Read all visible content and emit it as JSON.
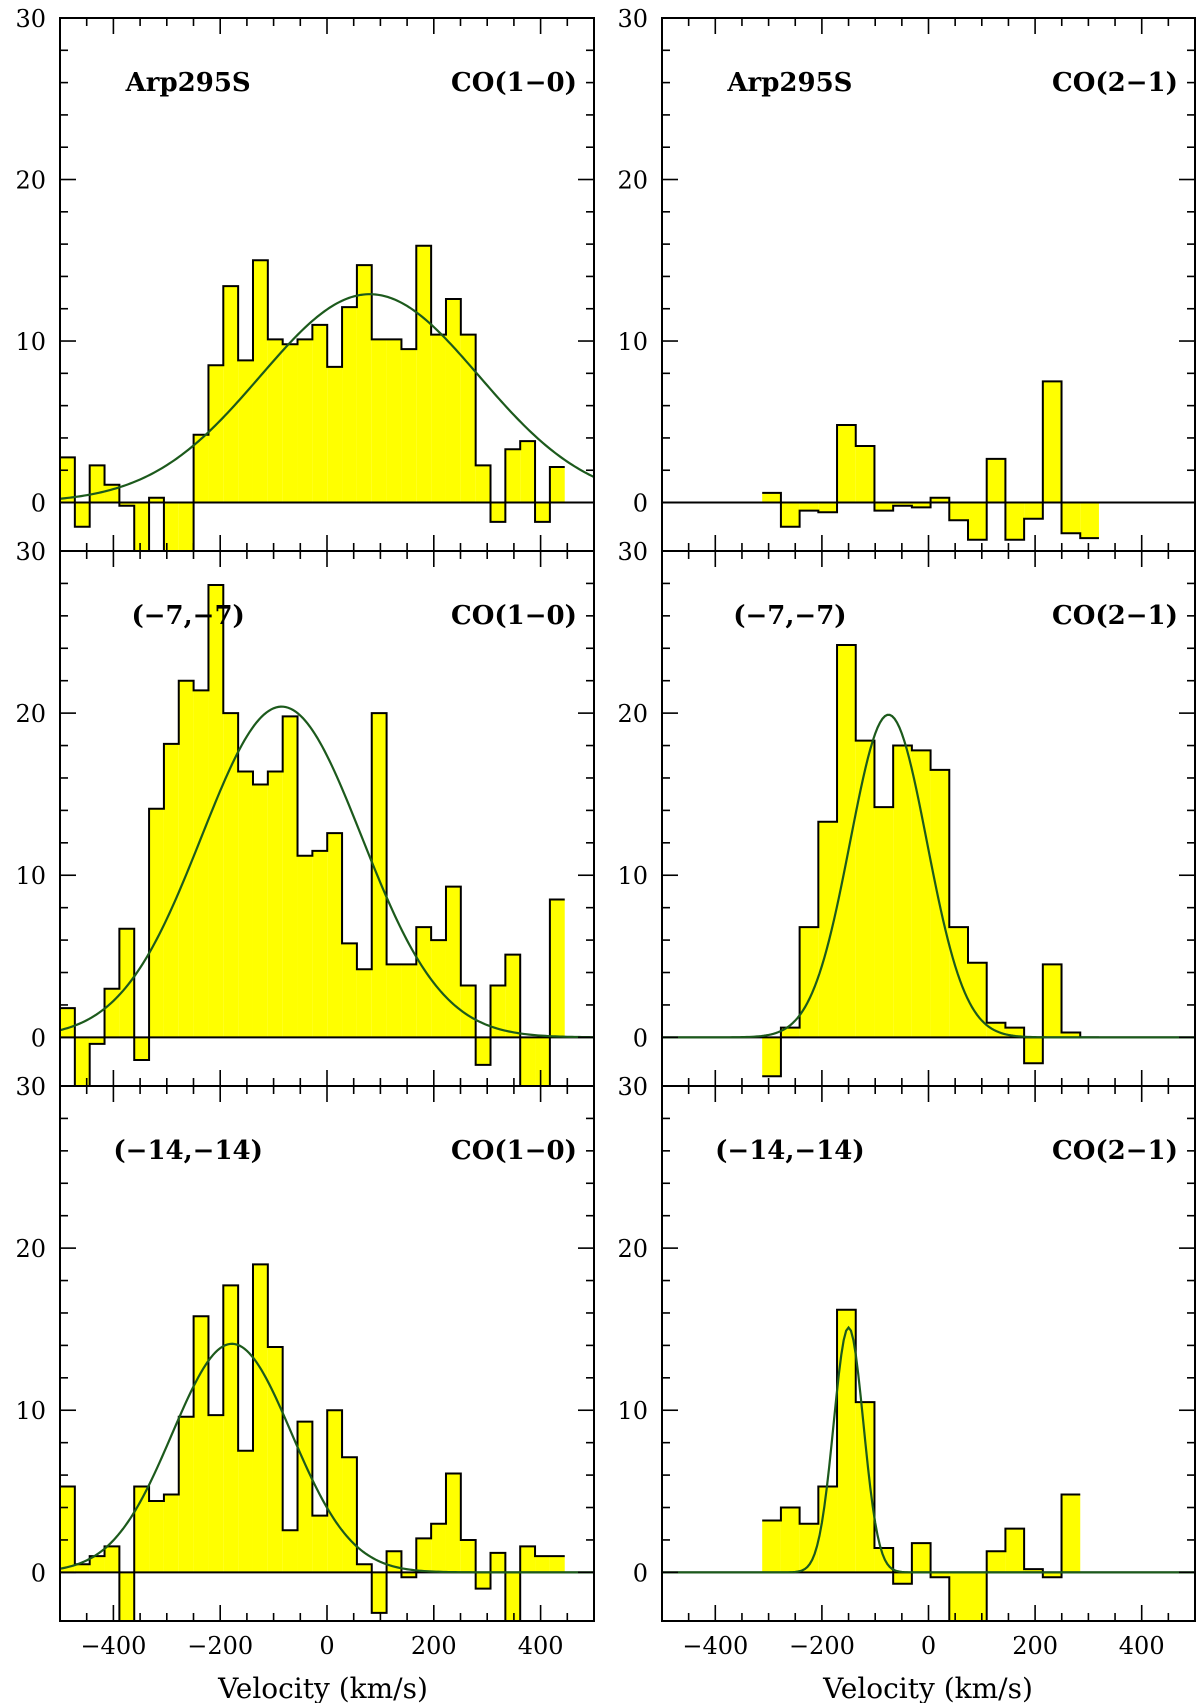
{
  "chart_data": {
    "type": "bar",
    "colors": {
      "fill": "#ffff00",
      "stroke": "#000000",
      "fit": "#1c5a1c"
    },
    "xlabel": "Velocity (km/s)",
    "x_tick_labels": [
      "−400",
      "−200",
      "0",
      "200",
      "400"
    ],
    "xlim": [
      -500,
      500
    ],
    "ylim": [
      -3,
      30
    ],
    "y_tick_labels": [
      "0",
      "10",
      "20",
      "30"
    ],
    "panels": [
      {
        "row": 0,
        "col": 0,
        "source": "Arp295S",
        "line": "CO(1−0)",
        "bin_start": -500,
        "bin_width": 27.8,
        "values": [
          2.8,
          -1.5,
          2.3,
          1.1,
          -0.2,
          -3.0,
          0.3,
          -3.0,
          -3.0,
          4.2,
          8.5,
          13.4,
          8.8,
          15.0,
          10.1,
          9.8,
          10.1,
          11.0,
          8.4,
          12.1,
          14.7,
          10.1,
          10.1,
          9.5,
          15.9,
          10.4,
          12.6,
          10.4,
          2.3,
          -1.2,
          3.3,
          3.8,
          -1.2,
          2.2
        ],
        "fit": {
          "amp": 12.9,
          "center": 80,
          "sigma": 205
        }
      },
      {
        "row": 0,
        "col": 1,
        "source": "Arp295S",
        "line": "CO(2−1)",
        "bin_start": -312,
        "bin_width": 35.1,
        "values": [
          0.6,
          -1.5,
          -0.5,
          -0.6,
          4.8,
          3.5,
          -0.5,
          -0.2,
          -0.3,
          0.3,
          -1.1,
          -2.3,
          2.7,
          -2.3,
          -1.0,
          7.5,
          -1.9,
          -2.2
        ],
        "fit": null
      },
      {
        "row": 1,
        "col": 0,
        "source": "(−7,−7)",
        "line": "CO(1−0)",
        "bin_start": -500,
        "bin_width": 27.8,
        "values": [
          1.8,
          -3.0,
          -0.4,
          3.0,
          6.7,
          -1.4,
          14.1,
          18.1,
          22.0,
          21.4,
          27.9,
          20.0,
          16.4,
          15.6,
          16.4,
          19.8,
          11.2,
          11.5,
          12.6,
          5.8,
          4.2,
          20.0,
          4.5,
          4.5,
          6.8,
          6.0,
          9.3,
          3.2,
          -1.7,
          3.2,
          5.1,
          -3.0,
          -3.0,
          8.5
        ],
        "fit": {
          "amp": 20.4,
          "center": -85,
          "sigma": 150
        }
      },
      {
        "row": 1,
        "col": 1,
        "source": "(−7,−7)",
        "line": "CO(2−1)",
        "bin_start": -312,
        "bin_width": 35.1,
        "values": [
          -2.4,
          0.6,
          6.8,
          13.3,
          24.2,
          18.3,
          14.2,
          18.0,
          17.7,
          16.5,
          6.8,
          4.6,
          0.9,
          0.6,
          -1.6,
          4.5,
          0.3,
          0.0
        ],
        "fit": {
          "amp": 19.9,
          "center": -75,
          "sigma": 72
        }
      },
      {
        "row": 2,
        "col": 0,
        "source": "(−14,−14)",
        "line": "CO(1−0)",
        "bin_start": -500,
        "bin_width": 27.8,
        "values": [
          5.3,
          0.5,
          1.0,
          1.6,
          -3.0,
          5.3,
          4.4,
          4.8,
          9.6,
          15.8,
          9.7,
          17.7,
          7.5,
          19.0,
          13.9,
          2.6,
          9.3,
          3.5,
          10.0,
          7.1,
          0.5,
          -2.5,
          1.3,
          -0.3,
          2.1,
          3.0,
          6.1,
          2.0,
          -1.0,
          1.2,
          -3.0,
          1.6,
          1.0,
          1.0
        ],
        "fit": {
          "amp": 14.1,
          "center": -178,
          "sigma": 112
        }
      },
      {
        "row": 2,
        "col": 1,
        "source": "(−14,−14)",
        "line": "CO(2−1)",
        "bin_start": -312,
        "bin_width": 35.1,
        "values": [
          3.2,
          4.0,
          3.0,
          5.3,
          16.2,
          10.5,
          1.5,
          -0.7,
          1.8,
          -0.3,
          -3.0,
          -3.0,
          1.3,
          2.7,
          0.2,
          -0.3,
          4.8
        ],
        "fit": {
          "amp": 15.1,
          "center": -150,
          "sigma": 28
        }
      }
    ]
  }
}
